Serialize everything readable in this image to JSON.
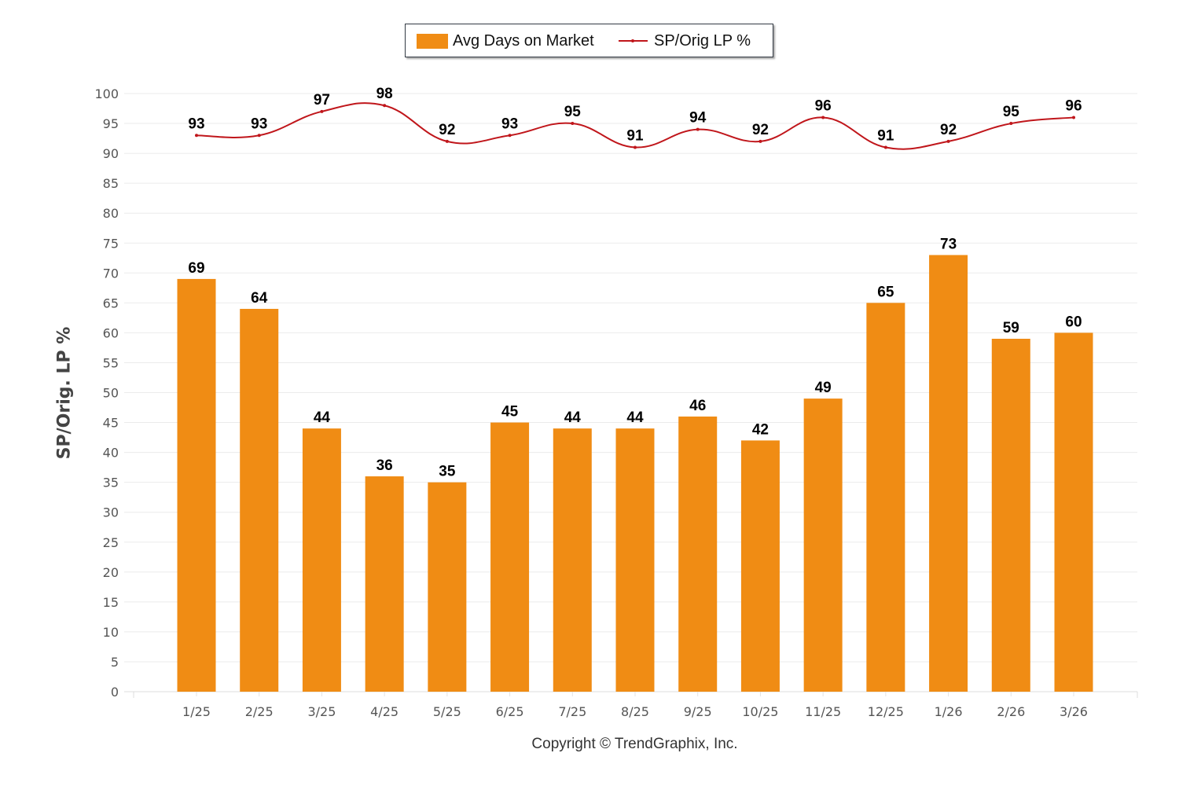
{
  "chart_data": {
    "type": "bar",
    "categories": [
      "1/25",
      "2/25",
      "3/25",
      "4/25",
      "5/25",
      "6/25",
      "7/25",
      "8/25",
      "9/25",
      "10/25",
      "11/25",
      "12/25",
      "1/26",
      "2/26",
      "3/26"
    ],
    "series": [
      {
        "name": "Avg Days on Market",
        "type": "bar",
        "color": "#f08c14",
        "values": [
          69,
          64,
          44,
          36,
          35,
          45,
          44,
          44,
          46,
          42,
          49,
          65,
          73,
          59,
          60
        ]
      },
      {
        "name": "SP/Orig LP %",
        "type": "line",
        "color": "#c0161b",
        "values": [
          93,
          93,
          97,
          98,
          92,
          93,
          95,
          91,
          94,
          92,
          96,
          91,
          92,
          95,
          96
        ]
      }
    ],
    "ylabel": "SP/Orig. LP %",
    "xlabel": "",
    "ylim": [
      0,
      100
    ],
    "yticks": [
      0,
      5,
      10,
      15,
      20,
      25,
      30,
      35,
      40,
      45,
      50,
      55,
      60,
      65,
      70,
      75,
      80,
      85,
      90,
      95,
      100
    ],
    "grid": true,
    "legend_position": "top-center"
  },
  "legend": {
    "bar_label": "Avg Days on Market",
    "line_label": "SP/Orig LP %"
  },
  "footer": {
    "copyright": "Copyright © TrendGraphix, Inc."
  },
  "colors": {
    "bar": "#f08c14",
    "line": "#c0161b",
    "grid": "#ebebeb"
  }
}
